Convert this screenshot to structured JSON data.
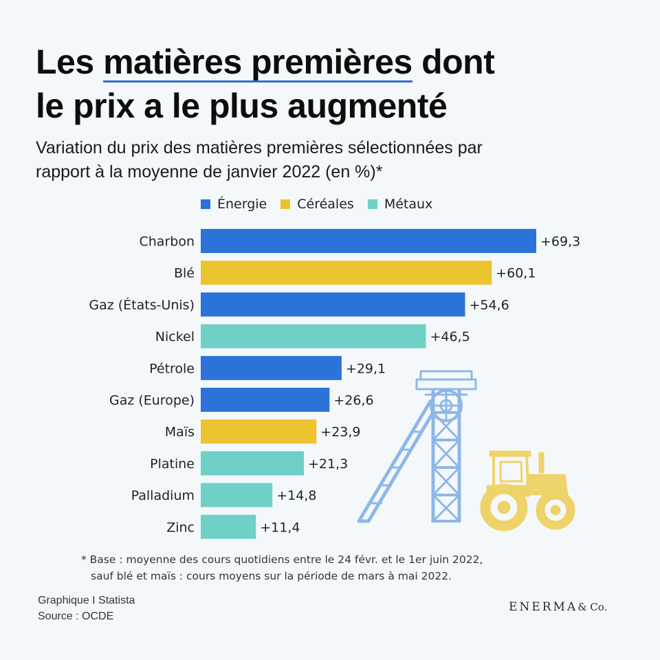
{
  "title": {
    "line1_before": "Les ",
    "line1_highlight": "matières premières",
    "line1_after": " dont",
    "line2": "le prix a le plus augmenté"
  },
  "subtitle": {
    "line1": "Variation du prix des matières premières sélectionnées par",
    "line2": "rapport à la moyenne de janvier 2022 (en %)*"
  },
  "legend": [
    {
      "label": "Énergie",
      "color": "#2b73d8"
    },
    {
      "label": "Céréales",
      "color": "#ebc32f"
    },
    {
      "label": "Métaux",
      "color": "#6fd0c8"
    }
  ],
  "chart_data": {
    "type": "bar",
    "orientation": "horizontal",
    "title": "Variation du prix des matières premières sélectionnées par rapport à la moyenne de janvier 2022 (en %)*",
    "categories": [
      "Charbon",
      "Blé",
      "Gaz (États-Unis)",
      "Nickel",
      "Pétrole",
      "Gaz (Europe)",
      "Maïs",
      "Platine",
      "Palladium",
      "Zinc"
    ],
    "values": [
      69.3,
      60.1,
      54.6,
      46.5,
      29.1,
      26.6,
      23.9,
      21.3,
      14.8,
      11.4
    ],
    "labels": [
      "+69,3",
      "+60,1",
      "+54,6",
      "+46,5",
      "+29,1",
      "+26,6",
      "+23,9",
      "+21,3",
      "+14,8",
      "+11,4"
    ],
    "groups": [
      "Énergie",
      "Céréales",
      "Énergie",
      "Métaux",
      "Énergie",
      "Énergie",
      "Céréales",
      "Métaux",
      "Métaux",
      "Métaux"
    ],
    "xlim": [
      0,
      69.3
    ],
    "grid": false,
    "legend_position": "top"
  },
  "footnote": {
    "line1": "* Base : moyenne des cours quotidiens entre le 24 févr. et le 1er juin 2022,",
    "line2": "sauf blé et maïs : cours moyens sur la période de mars à mai 2022."
  },
  "credits": {
    "line1": "Graphique I Statista",
    "line2": "Source : OCDE"
  },
  "brand": {
    "name": "ENERMA",
    "suffix": "& Co."
  },
  "illustrations": {
    "mine_color": "#8fb7e8",
    "tractor_color": "#eed36a"
  }
}
